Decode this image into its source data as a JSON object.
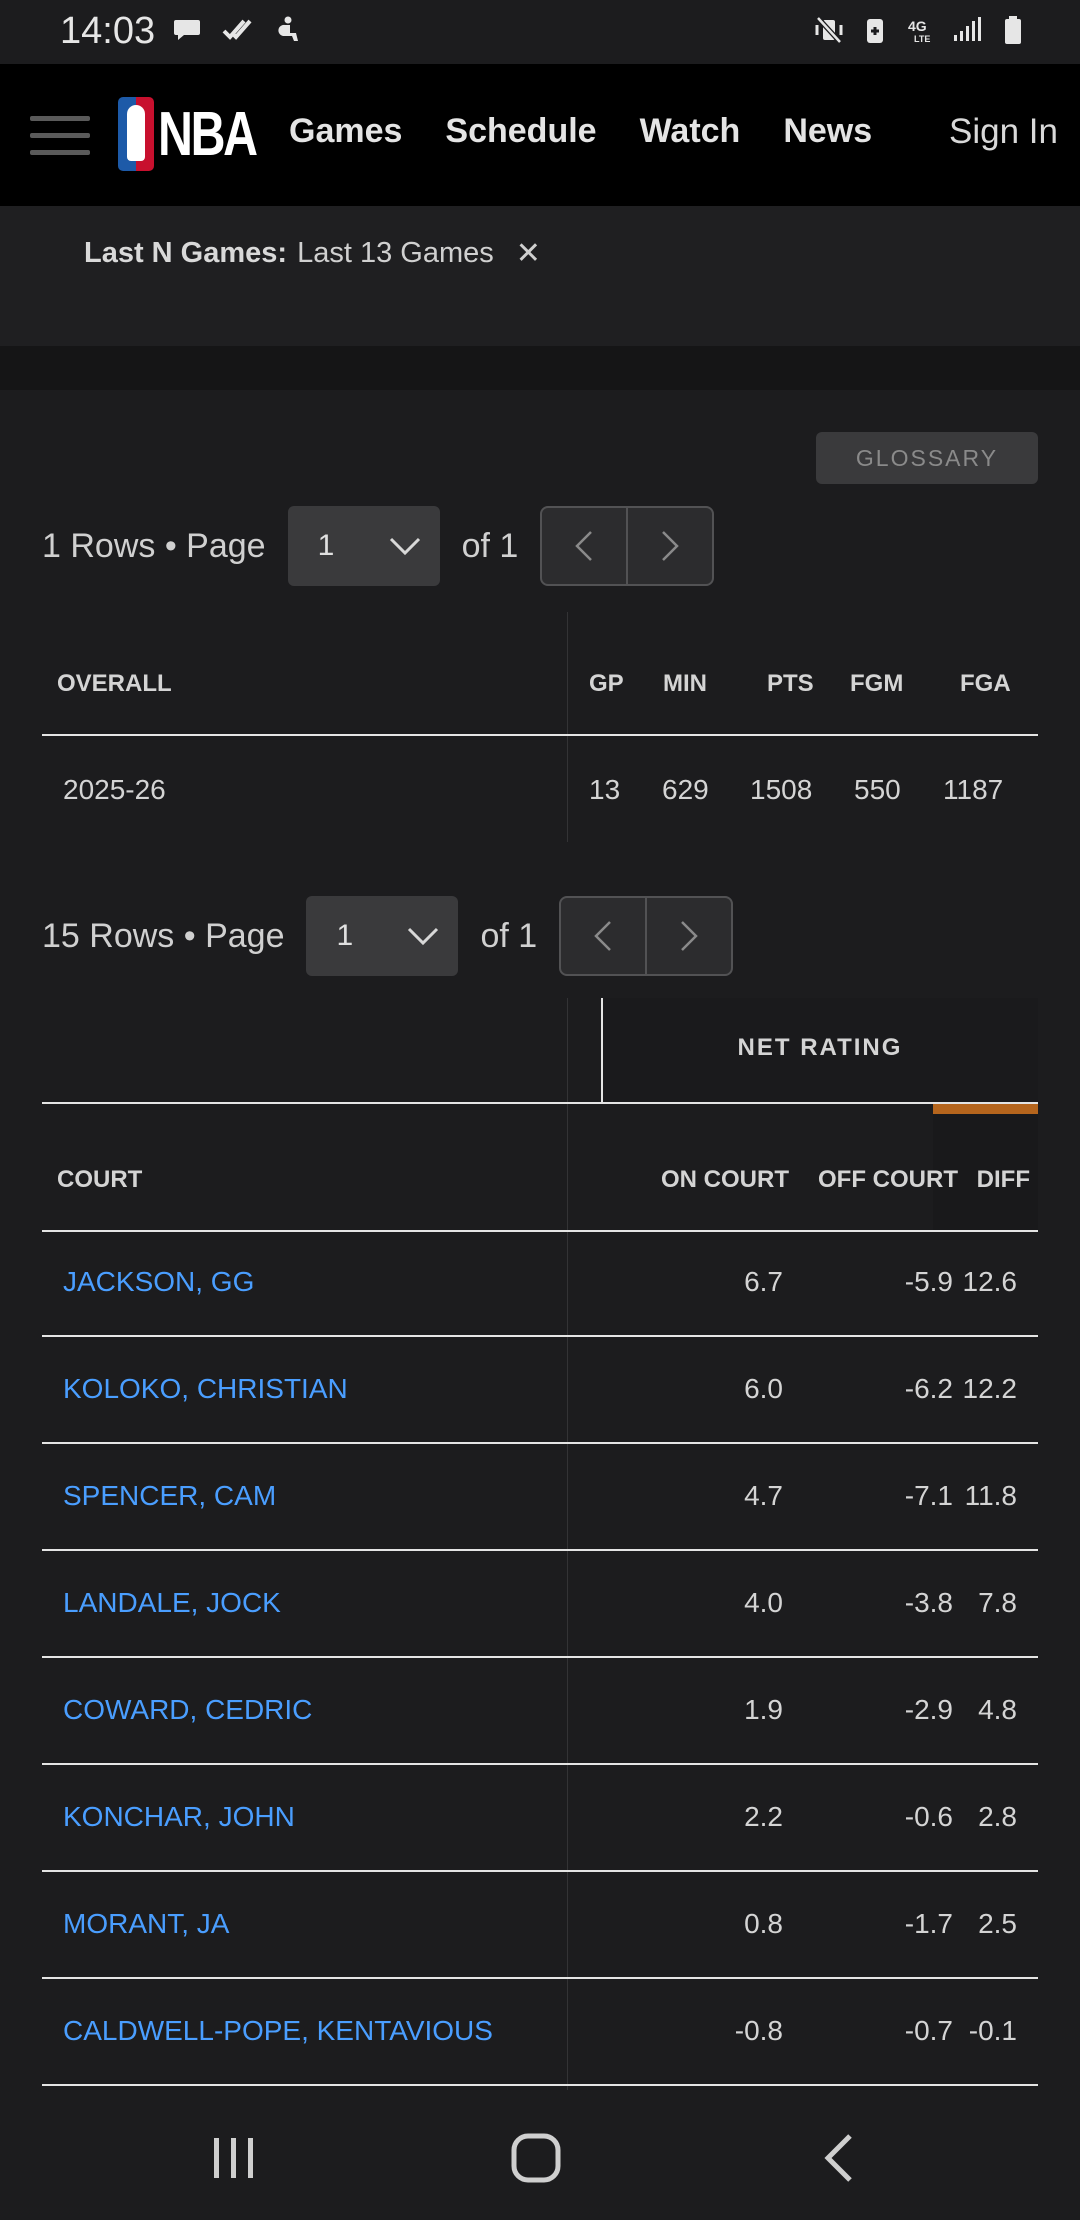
{
  "status_bar": {
    "time": "14:03",
    "left_icons": [
      "chat-bubble-icon",
      "double-check-icon",
      "accessibility-icon"
    ],
    "right_icons": [
      "vibrate-mute-icon",
      "battery-saver-icon",
      "4g-lte-icon",
      "signal-icon",
      "battery-icon"
    ]
  },
  "nav": {
    "logo_text": "NBA",
    "links": [
      "Games",
      "Schedule",
      "Watch",
      "News"
    ],
    "sign_in": "Sign In"
  },
  "filter": {
    "label": "Last N Games:",
    "value": "Last 13 Games",
    "close_glyph": "✕"
  },
  "glossary_label": "GLOSSARY",
  "pager1": {
    "rows_text": "1 Rows • Page",
    "page": "1",
    "of_text": "of 1"
  },
  "overall_table": {
    "headers": [
      "OVERALL",
      "GP",
      "MIN",
      "PTS",
      "FGM",
      "FGA"
    ],
    "rows": [
      [
        "2025-26",
        "13",
        "629",
        "1508",
        "550",
        "1187"
      ]
    ]
  },
  "pager2": {
    "rows_text": "15 Rows • Page",
    "page": "1",
    "of_text": "of 1"
  },
  "court_table": {
    "group_header": "NET RATING",
    "accent_color": "#b5651d",
    "link_color": "#4a9eff",
    "headers": [
      "COURT",
      "ON COURT",
      "OFF COURT",
      "DIFF"
    ],
    "rows": [
      [
        "JACKSON, GG",
        "6.7",
        "-5.9",
        "12.6"
      ],
      [
        "KOLOKO, CHRISTIAN",
        "6.0",
        "-6.2",
        "12.2"
      ],
      [
        "SPENCER, CAM",
        "4.7",
        "-7.1",
        "11.8"
      ],
      [
        "LANDALE, JOCK",
        "4.0",
        "-3.8",
        "7.8"
      ],
      [
        "COWARD, CEDRIC",
        "1.9",
        "-2.9",
        "4.8"
      ],
      [
        "KONCHAR, JOHN",
        "2.2",
        "-0.6",
        "2.8"
      ],
      [
        "MORANT, JA",
        "0.8",
        "-1.7",
        "2.5"
      ],
      [
        "CALDWELL-POPE, KENTAVIOUS",
        "-0.8",
        "-0.7",
        "-0.1"
      ]
    ]
  },
  "system_nav": [
    "recents-icon",
    "home-icon",
    "back-icon"
  ]
}
